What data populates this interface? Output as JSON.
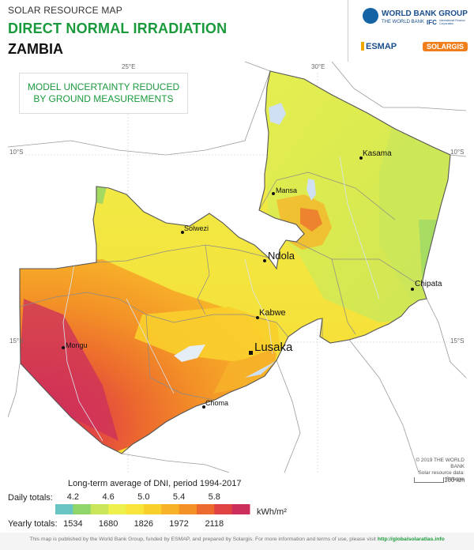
{
  "header": {
    "subtitle": "SOLAR RESOURCE MAP",
    "title": "DIRECT NORMAL IRRADIATION",
    "country": "ZAMBIA"
  },
  "logos": {
    "world_bank_group": "WORLD BANK GROUP",
    "world_bank": "THE WORLD BANK",
    "ifc": "IFC",
    "ifc_sub": "International Finance Corporation",
    "esmap": "ESMAP",
    "solargis": "SOLARGIS"
  },
  "map": {
    "grid_labels": {
      "lon_25": "25°E",
      "lon_30": "30°E",
      "lat_10_left": "10°S",
      "lat_10_right": "10°S",
      "lat_15_left": "15°S",
      "lat_15_right": "15°S"
    },
    "note_line1": "MODEL UNCERTAINTY REDUCED",
    "note_line2": "BY GROUND MEASUREMENTS",
    "cities": {
      "kasama": "Kasama",
      "mansa": "Mansa",
      "solwezi": "Solwezi",
      "ndola": "Ndola",
      "chipata": "Chipata",
      "kabwe": "Kabwe",
      "lusaka": "Lusaka",
      "mongu": "Mongu",
      "choma": "Choma"
    },
    "copyright_line1": "© 2019 THE WORLD BANK",
    "copyright_line2": "Solar resource data: Solargis",
    "scale_label": "100 km"
  },
  "legend": {
    "title": "Long-term average of DNI, period 1994-2017",
    "daily_label": "Daily totals:",
    "yearly_label": "Yearly totals:",
    "unit": "kWh/m²",
    "daily_ticks": [
      "4.2",
      "4.6",
      "5.0",
      "5.4",
      "5.8"
    ],
    "yearly_ticks": [
      "1534",
      "1680",
      "1826",
      "1972",
      "2118"
    ],
    "colors": [
      "#69c5c4",
      "#90d56a",
      "#c9e65a",
      "#eef04e",
      "#f8e43a",
      "#f9cf2c",
      "#f7b229",
      "#f39127",
      "#ec6a2e",
      "#e14244",
      "#cc2f5c"
    ]
  },
  "footer": {
    "text": "This map is published by the World Bank Group, funded by ESMAP, and prepared by Solargis. For more information and terms of use, please visit",
    "link": "http://globalsolaratlas.info"
  }
}
